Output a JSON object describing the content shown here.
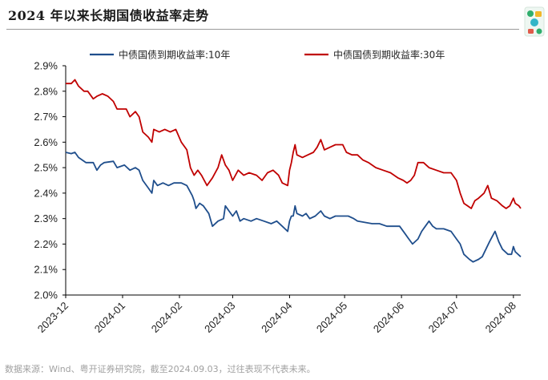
{
  "title": "2024 年以来长期国债收益率走势",
  "source": "数据来源：Wind、粤开证券研究院，截至2024.09.03，过往表现不代表未来。",
  "logo_icon": "brand-logo-icon",
  "chart_data": {
    "type": "line",
    "title": "2024 年以来长期国债收益率走势",
    "xlabel": "",
    "ylabel": "",
    "ylim": [
      2.0,
      2.9
    ],
    "yticks": [
      "2.0%",
      "2.1%",
      "2.2%",
      "2.3%",
      "2.4%",
      "2.5%",
      "2.6%",
      "2.7%",
      "2.8%",
      "2.9%"
    ],
    "xlim": [
      "2023-12-01",
      "2024-08-05"
    ],
    "xticks": [
      "2023-12",
      "2024-01",
      "2024-02",
      "2024-03",
      "2024-04",
      "2024-05",
      "2024-06",
      "2024-07",
      "2024-08"
    ],
    "grid": false,
    "legend_position": "top",
    "series": [
      {
        "name": "中债国债到期收益率:10年",
        "color": "#1f4e8c",
        "points": [
          [
            "2023-12-01",
            2.56
          ],
          [
            "2023-12-04",
            2.555
          ],
          [
            "2023-12-06",
            2.56
          ],
          [
            "2023-12-08",
            2.54
          ],
          [
            "2023-12-12",
            2.52
          ],
          [
            "2023-12-16",
            2.52
          ],
          [
            "2023-12-18",
            2.49
          ],
          [
            "2023-12-20",
            2.51
          ],
          [
            "2023-12-22",
            2.52
          ],
          [
            "2023-12-27",
            2.525
          ],
          [
            "2023-12-29",
            2.5
          ],
          [
            "2024-01-02",
            2.51
          ],
          [
            "2024-01-05",
            2.49
          ],
          [
            "2024-01-08",
            2.5
          ],
          [
            "2024-01-10",
            2.49
          ],
          [
            "2024-01-12",
            2.45
          ],
          [
            "2024-01-15",
            2.42
          ],
          [
            "2024-01-17",
            2.4
          ],
          [
            "2024-01-18",
            2.45
          ],
          [
            "2024-01-20",
            2.43
          ],
          [
            "2024-01-23",
            2.44
          ],
          [
            "2024-01-26",
            2.43
          ],
          [
            "2024-01-29",
            2.44
          ],
          [
            "2024-02-02",
            2.44
          ],
          [
            "2024-02-05",
            2.43
          ],
          [
            "2024-02-08",
            2.39
          ],
          [
            "2024-02-09",
            2.37
          ],
          [
            "2024-02-10",
            2.34
          ],
          [
            "2024-02-12",
            2.36
          ],
          [
            "2024-02-14",
            2.35
          ],
          [
            "2024-02-17",
            2.32
          ],
          [
            "2024-02-19",
            2.27
          ],
          [
            "2024-02-22",
            2.29
          ],
          [
            "2024-02-25",
            2.3
          ],
          [
            "2024-02-26",
            2.35
          ],
          [
            "2024-02-28",
            2.33
          ],
          [
            "2024-03-01",
            2.31
          ],
          [
            "2024-03-03",
            2.33
          ],
          [
            "2024-03-05",
            2.29
          ],
          [
            "2024-03-07",
            2.3
          ],
          [
            "2024-03-11",
            2.29
          ],
          [
            "2024-03-14",
            2.3
          ],
          [
            "2024-03-18",
            2.29
          ],
          [
            "2024-03-22",
            2.28
          ],
          [
            "2024-03-25",
            2.29
          ],
          [
            "2024-03-28",
            2.27
          ],
          [
            "2024-03-31",
            2.25
          ],
          [
            "2024-04-01",
            2.29
          ],
          [
            "2024-04-02",
            2.31
          ],
          [
            "2024-04-03",
            2.31
          ],
          [
            "2024-04-04",
            2.35
          ],
          [
            "2024-04-05",
            2.32
          ],
          [
            "2024-04-08",
            2.31
          ],
          [
            "2024-04-10",
            2.32
          ],
          [
            "2024-04-12",
            2.3
          ],
          [
            "2024-04-15",
            2.31
          ],
          [
            "2024-04-18",
            2.33
          ],
          [
            "2024-04-20",
            2.31
          ],
          [
            "2024-04-23",
            2.3
          ],
          [
            "2024-04-26",
            2.31
          ],
          [
            "2024-04-30",
            2.31
          ],
          [
            "2024-05-03",
            2.31
          ],
          [
            "2024-05-06",
            2.3
          ],
          [
            "2024-05-08",
            2.29
          ],
          [
            "2024-05-12",
            2.285
          ],
          [
            "2024-05-16",
            2.28
          ],
          [
            "2024-05-20",
            2.28
          ],
          [
            "2024-05-24",
            2.27
          ],
          [
            "2024-05-28",
            2.27
          ],
          [
            "2024-05-31",
            2.27
          ],
          [
            "2024-06-03",
            2.24
          ],
          [
            "2024-06-05",
            2.22
          ],
          [
            "2024-06-07",
            2.2
          ],
          [
            "2024-06-10",
            2.22
          ],
          [
            "2024-06-12",
            2.25
          ],
          [
            "2024-06-14",
            2.27
          ],
          [
            "2024-06-16",
            2.29
          ],
          [
            "2024-06-18",
            2.27
          ],
          [
            "2024-06-20",
            2.26
          ],
          [
            "2024-06-24",
            2.26
          ],
          [
            "2024-06-28",
            2.25
          ],
          [
            "2024-07-01",
            2.22
          ],
          [
            "2024-07-03",
            2.2
          ],
          [
            "2024-07-05",
            2.16
          ],
          [
            "2024-07-08",
            2.14
          ],
          [
            "2024-07-10",
            2.13
          ],
          [
            "2024-07-13",
            2.14
          ],
          [
            "2024-07-15",
            2.15
          ],
          [
            "2024-07-17",
            2.18
          ],
          [
            "2024-07-19",
            2.21
          ],
          [
            "2024-07-22",
            2.25
          ],
          [
            "2024-07-24",
            2.21
          ],
          [
            "2024-07-26",
            2.18
          ],
          [
            "2024-07-29",
            2.16
          ],
          [
            "2024-07-31",
            2.16
          ],
          [
            "2024-08-01",
            2.19
          ],
          [
            "2024-08-02",
            2.17
          ],
          [
            "2024-08-05",
            2.15
          ]
        ]
      },
      {
        "name": "中债国债到期收益率:30年",
        "color": "#c00000",
        "points": [
          [
            "2023-12-01",
            2.83
          ],
          [
            "2023-12-04",
            2.83
          ],
          [
            "2023-12-06",
            2.845
          ],
          [
            "2023-12-08",
            2.82
          ],
          [
            "2023-12-11",
            2.8
          ],
          [
            "2023-12-13",
            2.8
          ],
          [
            "2023-12-16",
            2.77
          ],
          [
            "2023-12-18",
            2.78
          ],
          [
            "2023-12-21",
            2.79
          ],
          [
            "2023-12-24",
            2.78
          ],
          [
            "2023-12-27",
            2.76
          ],
          [
            "2023-12-29",
            2.73
          ],
          [
            "2024-01-03",
            2.73
          ],
          [
            "2024-01-05",
            2.7
          ],
          [
            "2024-01-08",
            2.72
          ],
          [
            "2024-01-10",
            2.7
          ],
          [
            "2024-01-12",
            2.64
          ],
          [
            "2024-01-15",
            2.62
          ],
          [
            "2024-01-17",
            2.6
          ],
          [
            "2024-01-18",
            2.65
          ],
          [
            "2024-01-21",
            2.64
          ],
          [
            "2024-01-24",
            2.65
          ],
          [
            "2024-01-27",
            2.64
          ],
          [
            "2024-01-30",
            2.65
          ],
          [
            "2024-02-02",
            2.6
          ],
          [
            "2024-02-05",
            2.57
          ],
          [
            "2024-02-07",
            2.5
          ],
          [
            "2024-02-09",
            2.47
          ],
          [
            "2024-02-11",
            2.49
          ],
          [
            "2024-02-13",
            2.47
          ],
          [
            "2024-02-16",
            2.43
          ],
          [
            "2024-02-19",
            2.46
          ],
          [
            "2024-02-22",
            2.5
          ],
          [
            "2024-02-24",
            2.55
          ],
          [
            "2024-02-26",
            2.51
          ],
          [
            "2024-02-28",
            2.49
          ],
          [
            "2024-03-01",
            2.45
          ],
          [
            "2024-03-04",
            2.49
          ],
          [
            "2024-03-07",
            2.47
          ],
          [
            "2024-03-10",
            2.48
          ],
          [
            "2024-03-14",
            2.47
          ],
          [
            "2024-03-17",
            2.45
          ],
          [
            "2024-03-20",
            2.48
          ],
          [
            "2024-03-23",
            2.49
          ],
          [
            "2024-03-26",
            2.47
          ],
          [
            "2024-03-28",
            2.44
          ],
          [
            "2024-03-31",
            2.43
          ],
          [
            "2024-04-01",
            2.49
          ],
          [
            "2024-04-02",
            2.52
          ],
          [
            "2024-04-03",
            2.56
          ],
          [
            "2024-04-04",
            2.59
          ],
          [
            "2024-04-05",
            2.55
          ],
          [
            "2024-04-08",
            2.54
          ],
          [
            "2024-04-11",
            2.55
          ],
          [
            "2024-04-14",
            2.56
          ],
          [
            "2024-04-16",
            2.58
          ],
          [
            "2024-04-18",
            2.61
          ],
          [
            "2024-04-20",
            2.57
          ],
          [
            "2024-04-23",
            2.58
          ],
          [
            "2024-04-26",
            2.59
          ],
          [
            "2024-04-30",
            2.59
          ],
          [
            "2024-05-02",
            2.56
          ],
          [
            "2024-05-05",
            2.55
          ],
          [
            "2024-05-08",
            2.55
          ],
          [
            "2024-05-11",
            2.53
          ],
          [
            "2024-05-14",
            2.52
          ],
          [
            "2024-05-18",
            2.5
          ],
          [
            "2024-05-22",
            2.49
          ],
          [
            "2024-05-26",
            2.48
          ],
          [
            "2024-05-30",
            2.46
          ],
          [
            "2024-06-02",
            2.45
          ],
          [
            "2024-06-04",
            2.44
          ],
          [
            "2024-06-06",
            2.45
          ],
          [
            "2024-06-08",
            2.47
          ],
          [
            "2024-06-10",
            2.52
          ],
          [
            "2024-06-13",
            2.52
          ],
          [
            "2024-06-16",
            2.5
          ],
          [
            "2024-06-20",
            2.49
          ],
          [
            "2024-06-24",
            2.48
          ],
          [
            "2024-06-28",
            2.48
          ],
          [
            "2024-07-01",
            2.45
          ],
          [
            "2024-07-03",
            2.4
          ],
          [
            "2024-07-05",
            2.36
          ],
          [
            "2024-07-07",
            2.35
          ],
          [
            "2024-07-09",
            2.34
          ],
          [
            "2024-07-11",
            2.37
          ],
          [
            "2024-07-13",
            2.38
          ],
          [
            "2024-07-16",
            2.4
          ],
          [
            "2024-07-18",
            2.43
          ],
          [
            "2024-07-20",
            2.38
          ],
          [
            "2024-07-23",
            2.37
          ],
          [
            "2024-07-26",
            2.35
          ],
          [
            "2024-07-28",
            2.34
          ],
          [
            "2024-07-30",
            2.35
          ],
          [
            "2024-08-01",
            2.38
          ],
          [
            "2024-08-02",
            2.36
          ],
          [
            "2024-08-04",
            2.35
          ],
          [
            "2024-08-05",
            2.34
          ]
        ]
      }
    ]
  }
}
